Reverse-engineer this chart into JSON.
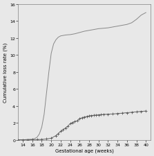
{
  "title": "",
  "xlabel": "Gestational age (weeks)",
  "ylabel": "Cumulative loss rate (%)",
  "background_color": "#d8d8d8",
  "plot_bg_color": "#e8e8e8",
  "xlim": [
    13,
    41
  ],
  "ylim": [
    0,
    16
  ],
  "yticks": [
    0,
    2,
    4,
    6,
    8,
    10,
    12,
    14,
    16
  ],
  "xticks": [
    14,
    16,
    18,
    20,
    22,
    24,
    26,
    28,
    30,
    32,
    34,
    36,
    38,
    40
  ],
  "line1_color": "#888888",
  "line2_color": "#555555",
  "line1_x": [
    13.0,
    14.0,
    15.0,
    16.0,
    16.5,
    17.0,
    17.5,
    18.0,
    18.5,
    19.0,
    19.5,
    20.0,
    20.5,
    21.0,
    21.5,
    22.0,
    22.5,
    23.0,
    23.5,
    24.0,
    25.0,
    26.0,
    27.0,
    28.0,
    29.0,
    30.0,
    31.0,
    32.0,
    33.0,
    34.0,
    35.0,
    36.0,
    37.0,
    38.0,
    39.0,
    40.0
  ],
  "line1_y": [
    0.0,
    0.0,
    0.05,
    0.08,
    0.15,
    0.3,
    0.7,
    1.5,
    3.0,
    5.5,
    8.0,
    10.2,
    11.3,
    11.8,
    12.1,
    12.25,
    12.3,
    12.35,
    12.38,
    12.4,
    12.5,
    12.65,
    12.8,
    12.9,
    13.0,
    13.1,
    13.15,
    13.2,
    13.3,
    13.4,
    13.5,
    13.6,
    13.8,
    14.2,
    14.7,
    15.0
  ],
  "line2_x": [
    13.0,
    14.0,
    15.0,
    16.0,
    17.0,
    18.0,
    19.0,
    20.0,
    21.0,
    21.5,
    22.0,
    22.5,
    23.0,
    23.5,
    24.0,
    24.5,
    25.0,
    25.5,
    26.0,
    26.5,
    27.0,
    27.5,
    28.0,
    28.5,
    29.0,
    29.5,
    30.0,
    30.5,
    31.0,
    32.0,
    33.0,
    34.0,
    35.0,
    36.0,
    37.0,
    38.0,
    39.0,
    40.0
  ],
  "line2_y": [
    0.0,
    0.0,
    0.0,
    0.02,
    0.04,
    0.05,
    0.1,
    0.2,
    0.5,
    0.75,
    1.0,
    1.2,
    1.4,
    1.6,
    1.9,
    2.05,
    2.15,
    2.25,
    2.5,
    2.6,
    2.7,
    2.75,
    2.82,
    2.87,
    2.9,
    2.92,
    2.95,
    2.97,
    3.0,
    3.02,
    3.05,
    3.1,
    3.15,
    3.2,
    3.25,
    3.3,
    3.35,
    3.4
  ]
}
